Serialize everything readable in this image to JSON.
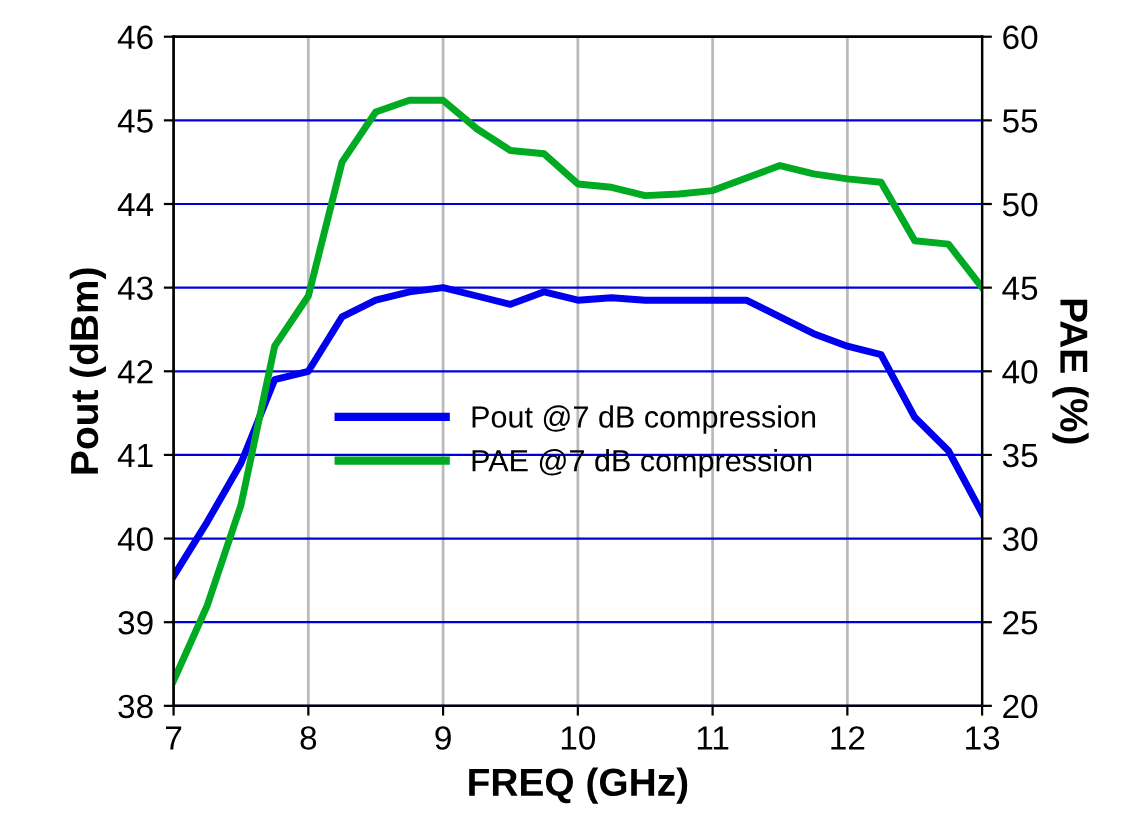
{
  "chart_data": {
    "type": "line",
    "xlabel": "FREQ (GHz)",
    "ylabel": "Pout (dBm)",
    "y2label": "PAE (%)",
    "xlim": [
      7,
      13
    ],
    "xticks": [
      7,
      8,
      9,
      10,
      11,
      12,
      13
    ],
    "ylim": [
      38,
      46
    ],
    "yticks": [
      38,
      39,
      40,
      41,
      42,
      43,
      44,
      45,
      46
    ],
    "y2lim": [
      20,
      60
    ],
    "y2ticks": [
      20,
      25,
      30,
      35,
      40,
      45,
      50,
      55,
      60
    ],
    "grid": true,
    "legend": "bottom",
    "marker": "none",
    "line_style": "solid",
    "series": [
      {
        "name": "Pout @7 dB compression",
        "color": "#0000ee",
        "x": [
          7,
          7.25,
          7.5,
          7.75,
          8,
          8.25,
          8.5,
          8.75,
          9,
          9.25,
          9.5,
          9.75,
          10,
          10.25,
          10.5,
          11,
          11.25,
          11.5,
          11.75,
          12,
          12.25,
          12.5,
          12.75,
          13
        ],
        "values": [
          39.55,
          40.2,
          40.9,
          41.9,
          42.0,
          42.65,
          42.85,
          42.95,
          43.0,
          42.9,
          42.8,
          42.95,
          42.85,
          42.88,
          42.85,
          42.85,
          42.85,
          42.65,
          42.45,
          42.3,
          42.2,
          41.45,
          41.05,
          40.3
        ]
      },
      {
        "name": "PAE @7 dB compression",
        "color": "#00aa22",
        "axis": "y2",
        "x": [
          7,
          7.25,
          7.5,
          7.75,
          8,
          8.25,
          8.5,
          8.75,
          9,
          9.25,
          9.5,
          9.75,
          10,
          10.25,
          10.5,
          10.75,
          11,
          11.5,
          11.75,
          12,
          12.25,
          12.5,
          12.75,
          13
        ],
        "values": [
          21.5,
          26,
          32,
          41.5,
          44.5,
          52.5,
          55.5,
          56.2,
          56.2,
          54.5,
          53.2,
          53,
          51.2,
          51,
          50.5,
          50.6,
          50.8,
          52.3,
          51.8,
          51.5,
          51.3,
          47.8,
          47.6,
          45
        ]
      }
    ]
  }
}
